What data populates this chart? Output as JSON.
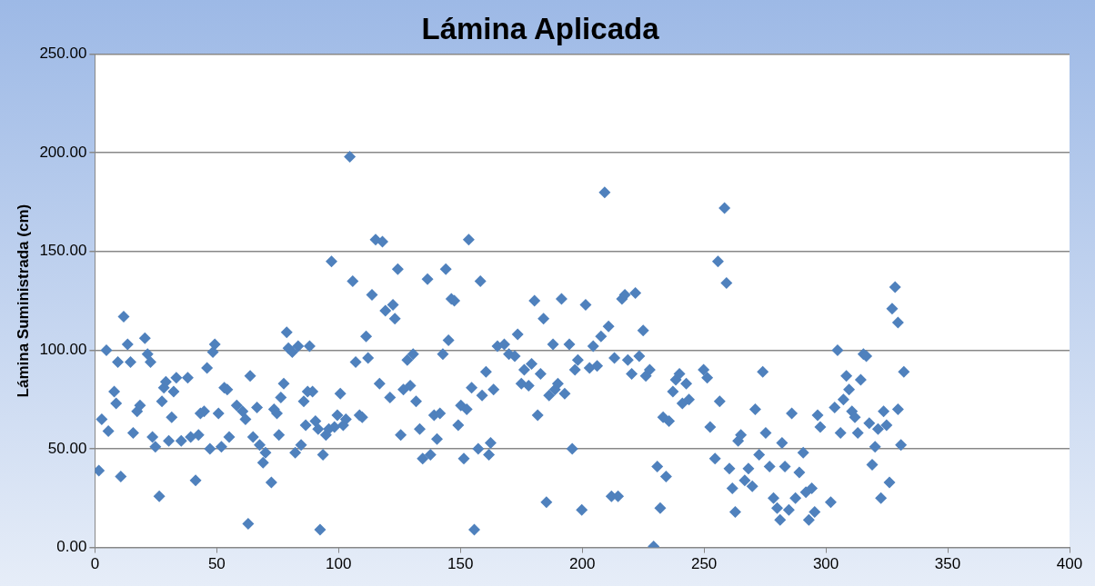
{
  "chart_data": {
    "type": "scatter",
    "title": "Lámina Aplicada",
    "ylabel": "Lámina Suministrada (cm)",
    "xlim": [
      0,
      400
    ],
    "xticks": [
      0,
      50,
      100,
      150,
      200,
      250,
      300,
      350,
      400
    ],
    "ylim": [
      0,
      250
    ],
    "yticks": [
      {
        "value": 0,
        "label": "0.00"
      },
      {
        "value": 50,
        "label": "50.00"
      },
      {
        "value": 100,
        "label": "100.00"
      },
      {
        "value": 150,
        "label": "150.00"
      },
      {
        "value": 200,
        "label": "200.00"
      },
      {
        "value": 250,
        "label": "250.00"
      }
    ],
    "grid": "y",
    "marker": "diamond",
    "legend": false,
    "series": [
      {
        "color": "#4f81bd",
        "x": [
          1.6,
          2.8,
          4.7,
          5.5,
          7.9,
          8.7,
          9.4,
          10.6,
          11.8,
          13.4,
          14.6,
          15.7,
          17.3,
          18.5,
          20.5,
          21.6,
          22.8,
          23.6,
          24.8,
          26.4,
          27.5,
          28.3,
          29.1,
          30.3,
          31.5,
          32.3,
          33.4,
          35.4,
          38.1,
          39.3,
          41.3,
          42.5,
          43.3,
          44.8,
          46.0,
          47.2,
          48.4,
          49.2,
          50.7,
          51.9,
          53.1,
          54.3,
          55.1,
          58.2,
          60.6,
          61.8,
          62.9,
          63.7,
          64.9,
          66.5,
          67.6,
          69.0,
          70.0,
          72.4,
          73.5,
          74.7,
          75.5,
          76.3,
          77.5,
          78.7,
          79.4,
          81.0,
          82.2,
          83.4,
          84.6,
          85.7,
          86.5,
          87.3,
          88.1,
          89.3,
          90.5,
          91.6,
          92.4,
          93.6,
          94.8,
          96.0,
          97.1,
          98.3,
          99.5,
          100.7,
          101.9,
          103.0,
          104.6,
          105.8,
          107.0,
          108.6,
          109.7,
          111.3,
          112.1,
          113.7,
          115.2,
          116.8,
          118.0,
          119.2,
          121.1,
          122.3,
          123.1,
          124.3,
          125.5,
          126.6,
          128.2,
          129.4,
          130.6,
          131.8,
          133.3,
          134.5,
          136.5,
          137.7,
          139.2,
          140.4,
          141.6,
          142.8,
          144.0,
          145.1,
          146.3,
          147.5,
          149.1,
          150.2,
          151.4,
          152.6,
          153.4,
          154.6,
          155.7,
          157.3,
          158.2,
          158.9,
          160.5,
          161.7,
          162.4,
          163.6,
          165.2,
          168.0,
          169.9,
          172.3,
          173.5,
          175.0,
          176.2,
          178.0,
          179.2,
          180.4,
          181.7,
          182.9,
          184.1,
          185.3,
          186.4,
          188.0,
          188.8,
          190.0,
          191.5,
          192.8,
          194.7,
          195.9,
          197.0,
          198.2,
          199.8,
          201.4,
          203.0,
          204.5,
          206.1,
          207.7,
          209.2,
          210.8,
          212.0,
          213.2,
          214.7,
          216.3,
          217.5,
          218.7,
          220.3,
          221.8,
          223.4,
          225.0,
          226.1,
          227.7,
          229.3,
          230.8,
          232.0,
          233.2,
          234.4,
          235.6,
          237.2,
          238.4,
          239.9,
          241.1,
          242.7,
          243.8,
          249.8,
          251.3,
          252.5,
          254.5,
          255.7,
          256.4,
          258.4,
          259.2,
          260.4,
          261.6,
          262.8,
          264.0,
          265.1,
          266.7,
          268.2,
          269.8,
          271.0,
          272.6,
          274.1,
          275.3,
          276.9,
          278.5,
          280.0,
          281.2,
          282.0,
          283.2,
          284.8,
          286.0,
          287.5,
          289.1,
          290.7,
          291.8,
          293.0,
          294.2,
          295.4,
          296.6,
          297.7,
          302.0,
          303.6,
          304.8,
          306.0,
          307.2,
          308.4,
          309.5,
          310.7,
          311.9,
          313.1,
          314.3,
          315.4,
          316.6,
          317.8,
          319.0,
          320.2,
          321.4,
          322.6,
          323.7,
          324.9,
          326.1,
          327.2,
          328.4,
          329.6,
          329.6,
          330.8,
          332.0
        ],
        "values": [
          39,
          65,
          100,
          59,
          79,
          73,
          94,
          36,
          117,
          103,
          94,
          58,
          69,
          72,
          106,
          98,
          94,
          56,
          51,
          26,
          74,
          81,
          84,
          54,
          66,
          79,
          86,
          54,
          86,
          56,
          34,
          57,
          68,
          69,
          91,
          50,
          99,
          103,
          68,
          51,
          81,
          80,
          56,
          72,
          69,
          65,
          12,
          87,
          56,
          71,
          52,
          43,
          48,
          33,
          70,
          68,
          57,
          76,
          83,
          109,
          101,
          99,
          48,
          102,
          52,
          74,
          62,
          79,
          102,
          79,
          64,
          60,
          9,
          47,
          57,
          60,
          145,
          61,
          67,
          78,
          62,
          65,
          198,
          135,
          94,
          67,
          66,
          107,
          96,
          128,
          156,
          83,
          155,
          120,
          76,
          123,
          116,
          141,
          57,
          80,
          95,
          82,
          98,
          74,
          60,
          45,
          136,
          47,
          67,
          55,
          68,
          98,
          141,
          105,
          126,
          125,
          62,
          72,
          45,
          70,
          156,
          81,
          9,
          50,
          135,
          77,
          89,
          47,
          53,
          80,
          102,
          103,
          98,
          97,
          108,
          83,
          90,
          82,
          93,
          125,
          67,
          88,
          116,
          23,
          77,
          103,
          80,
          83,
          126,
          78,
          103,
          50,
          90,
          95,
          19,
          123,
          91,
          102,
          92,
          107,
          180,
          112,
          26,
          96,
          26,
          126,
          128,
          95,
          88,
          129,
          97,
          110,
          87,
          90,
          0.5,
          41,
          20,
          66,
          36,
          64,
          79,
          85,
          88,
          73,
          83,
          75,
          90,
          86,
          61,
          45,
          145,
          74,
          172,
          134,
          40,
          30,
          18,
          54,
          57,
          34,
          40,
          31,
          70,
          47,
          89,
          58,
          41,
          25,
          20,
          14,
          53,
          41,
          19,
          68,
          25,
          38,
          48,
          28,
          14,
          30,
          18,
          67,
          61,
          23,
          71,
          100,
          58,
          75,
          87,
          80,
          69,
          66,
          58,
          85,
          98,
          97,
          63,
          42,
          51,
          60,
          25,
          69,
          62,
          33,
          121,
          132,
          70,
          114,
          52,
          89
        ]
      }
    ]
  }
}
